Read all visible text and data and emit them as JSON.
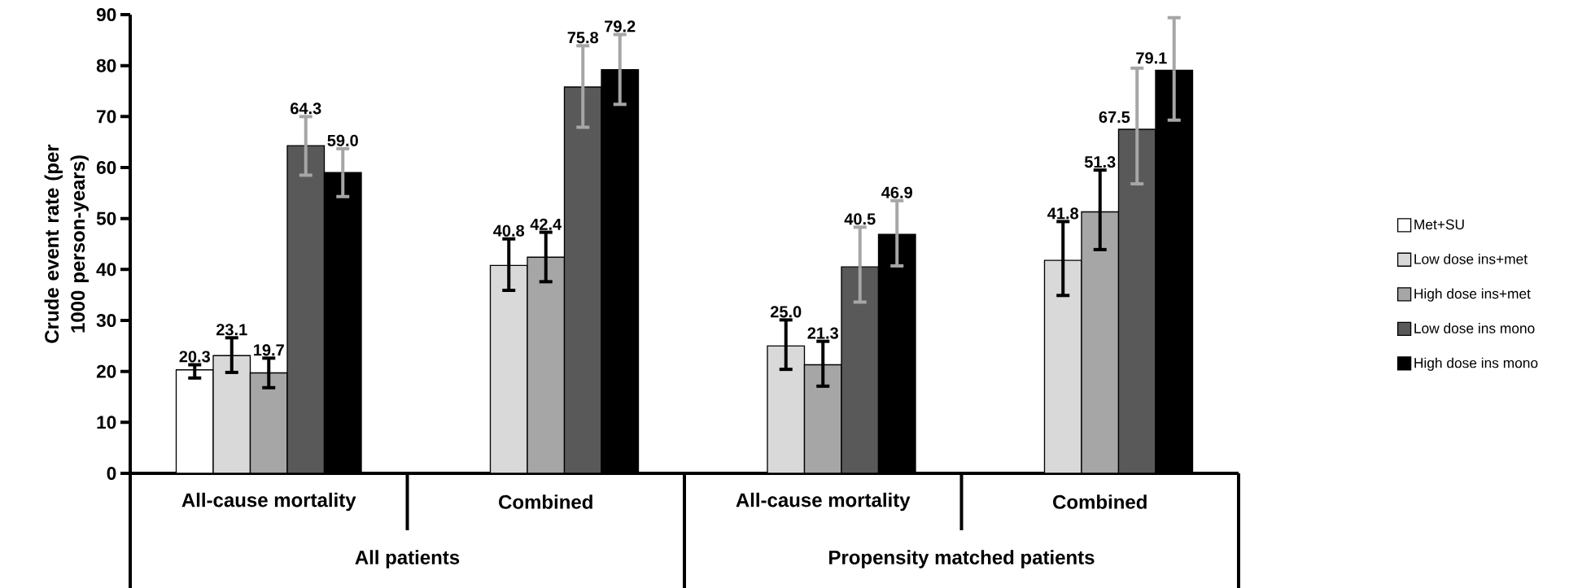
{
  "chart_data": {
    "type": "bar",
    "ylabel": "Crude event rate (per 1000 person-years)",
    "categories": [
      "All-cause mortality",
      "Combined",
      "All-cause mortality",
      "Combined"
    ],
    "annotations": [
      "All patients",
      "Propensity matched patients"
    ],
    "series": [
      {
        "name": "Met+SU",
        "color": "#ffffff",
        "values": [
          20.3,
          null,
          null,
          null
        ],
        "value_labels": [
          "20.3",
          null,
          null,
          null
        ],
        "errors": [
          [
            18.7,
            21.3
          ],
          null,
          null,
          null
        ]
      },
      {
        "name": "Low dose ins+met",
        "color": "#d9d9d9",
        "values": [
          23.1,
          40.8,
          25.0,
          41.8
        ],
        "value_labels": [
          "23.1",
          "40.8",
          "25.0",
          "41.8"
        ],
        "errors": [
          [
            19.8,
            26.6
          ],
          [
            35.9,
            46.0
          ],
          [
            20.4,
            30.1
          ],
          [
            34.9,
            49.4
          ]
        ]
      },
      {
        "name": "High dose ins+met",
        "color": "#a6a6a6",
        "values": [
          19.7,
          42.4,
          21.3,
          51.3
        ],
        "value_labels": [
          "19.7",
          "42.4",
          "21.3",
          "51.3"
        ],
        "errors": [
          [
            16.8,
            22.6
          ],
          [
            37.6,
            47.3
          ],
          [
            17.1,
            25.9
          ],
          [
            43.9,
            59.5
          ]
        ]
      },
      {
        "name": "Low dose ins mono",
        "color": "#595959",
        "values": [
          64.3,
          75.8,
          40.5,
          67.5
        ],
        "value_labels": [
          "64.3",
          "75.8",
          "40.5",
          "67.5"
        ],
        "errors": [
          [
            58.5,
            70.0
          ],
          [
            67.9,
            83.9
          ],
          [
            33.6,
            48.3
          ],
          [
            56.8,
            79.5
          ]
        ]
      },
      {
        "name": "High dose ins mono",
        "color": "#000000",
        "values": [
          59.0,
          79.2,
          46.9,
          79.1
        ],
        "value_labels": [
          "59.0",
          "79.2",
          "46.9",
          "79.1"
        ],
        "errors": [
          [
            54.3,
            63.7
          ],
          [
            72.4,
            86.1
          ],
          [
            40.7,
            53.5
          ],
          [
            69.3,
            89.4
          ]
        ]
      }
    ],
    "ylim": [
      0,
      90
    ],
    "yticks": [
      0,
      10,
      20,
      30,
      40,
      50,
      60,
      70,
      80,
      90
    ],
    "grid": false,
    "legend": "right"
  }
}
